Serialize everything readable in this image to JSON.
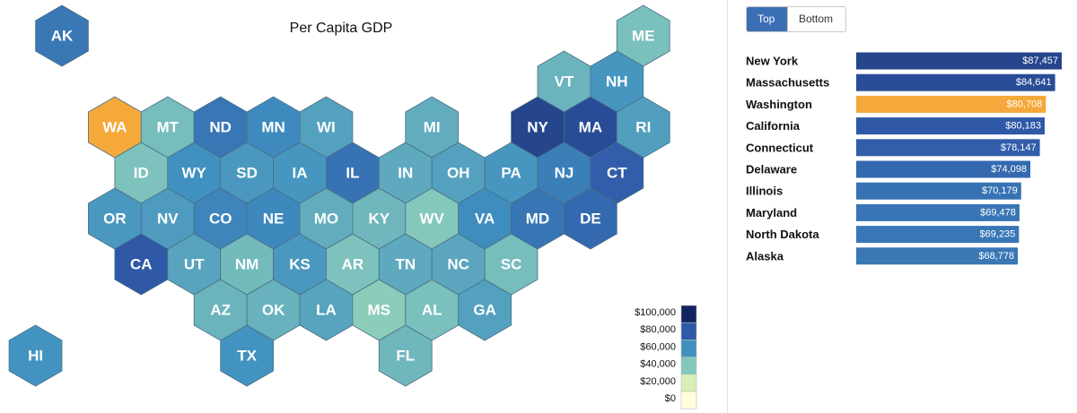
{
  "title": "Per Capita GDP",
  "colors": {
    "highlight": "#f4a93a",
    "scale": [
      "#ffffd9",
      "#d7efb4",
      "#84c8bb",
      "#4090c0",
      "#2f58a8",
      "#142460"
    ]
  },
  "controls": {
    "tabs": [
      {
        "id": "top",
        "label": "Top",
        "active": true
      },
      {
        "id": "bottom",
        "label": "Bottom",
        "active": false
      }
    ]
  },
  "chart_data": [
    {
      "type": "heatmap",
      "title": "Per Capita GDP",
      "highlight_state": "WA",
      "color_stops": [
        0,
        20000,
        40000,
        60000,
        80000,
        100000
      ],
      "legend": {
        "labels": [
          "$100,000",
          "$80,000",
          "$60,000",
          "$40,000",
          "$20,000",
          "$0"
        ],
        "placement": "bottom-right"
      },
      "states": [
        {
          "abbr": "AK",
          "col": 0,
          "row": 0,
          "value": 68778
        },
        {
          "abbr": "ME",
          "col": 11,
          "row": 0,
          "value": 43000
        },
        {
          "abbr": "VT",
          "col": 10,
          "row": 1,
          "value": 47000
        },
        {
          "abbr": "NH",
          "col": 11,
          "row": 1,
          "value": 58000
        },
        {
          "abbr": "WA",
          "col": 1,
          "row": 2,
          "value": 80708
        },
        {
          "abbr": "MT",
          "col": 2,
          "row": 2,
          "value": 44000
        },
        {
          "abbr": "ND",
          "col": 3,
          "row": 2,
          "value": 69235
        },
        {
          "abbr": "MN",
          "col": 4,
          "row": 2,
          "value": 62000
        },
        {
          "abbr": "WI",
          "col": 5,
          "row": 2,
          "value": 54000
        },
        {
          "abbr": "MI",
          "col": 7,
          "row": 2,
          "value": 50000
        },
        {
          "abbr": "NY",
          "col": 9,
          "row": 2,
          "value": 87457
        },
        {
          "abbr": "MA",
          "col": 10,
          "row": 2,
          "value": 84641
        },
        {
          "abbr": "RI",
          "col": 11,
          "row": 2,
          "value": 55000
        },
        {
          "abbr": "ID",
          "col": 2,
          "row": 3,
          "value": 42000
        },
        {
          "abbr": "WY",
          "col": 3,
          "row": 3,
          "value": 60000
        },
        {
          "abbr": "SD",
          "col": 4,
          "row": 3,
          "value": 57000
        },
        {
          "abbr": "IA",
          "col": 5,
          "row": 3,
          "value": 58000
        },
        {
          "abbr": "IL",
          "col": 6,
          "row": 3,
          "value": 70179
        },
        {
          "abbr": "IN",
          "col": 7,
          "row": 3,
          "value": 51000
        },
        {
          "abbr": "OH",
          "col": 8,
          "row": 3,
          "value": 54000
        },
        {
          "abbr": "PA",
          "col": 9,
          "row": 3,
          "value": 58000
        },
        {
          "abbr": "NJ",
          "col": 10,
          "row": 3,
          "value": 66000
        },
        {
          "abbr": "CT",
          "col": 11,
          "row": 3,
          "value": 78147
        },
        {
          "abbr": "OR",
          "col": 1,
          "row": 4,
          "value": 57000
        },
        {
          "abbr": "NV",
          "col": 2,
          "row": 4,
          "value": 56000
        },
        {
          "abbr": "CO",
          "col": 3,
          "row": 4,
          "value": 64000
        },
        {
          "abbr": "NE",
          "col": 4,
          "row": 4,
          "value": 63000
        },
        {
          "abbr": "MO",
          "col": 5,
          "row": 4,
          "value": 50000
        },
        {
          "abbr": "KY",
          "col": 6,
          "row": 4,
          "value": 46000
        },
        {
          "abbr": "WV",
          "col": 7,
          "row": 4,
          "value": 40000
        },
        {
          "abbr": "VA",
          "col": 8,
          "row": 4,
          "value": 61000
        },
        {
          "abbr": "MD",
          "col": 9,
          "row": 4,
          "value": 69478
        },
        {
          "abbr": "DE",
          "col": 10,
          "row": 4,
          "value": 74098
        },
        {
          "abbr": "CA",
          "col": 2,
          "row": 5,
          "value": 80183
        },
        {
          "abbr": "UT",
          "col": 3,
          "row": 5,
          "value": 53000
        },
        {
          "abbr": "NM",
          "col": 4,
          "row": 5,
          "value": 45000
        },
        {
          "abbr": "KS",
          "col": 5,
          "row": 5,
          "value": 57000
        },
        {
          "abbr": "AR",
          "col": 6,
          "row": 5,
          "value": 42000
        },
        {
          "abbr": "TN",
          "col": 7,
          "row": 5,
          "value": 51000
        },
        {
          "abbr": "NC",
          "col": 8,
          "row": 5,
          "value": 52000
        },
        {
          "abbr": "SC",
          "col": 9,
          "row": 5,
          "value": 44000
        },
        {
          "abbr": "AZ",
          "col": 3,
          "row": 6,
          "value": 47000
        },
        {
          "abbr": "OK",
          "col": 4,
          "row": 6,
          "value": 48000
        },
        {
          "abbr": "LA",
          "col": 5,
          "row": 6,
          "value": 53000
        },
        {
          "abbr": "MS",
          "col": 6,
          "row": 6,
          "value": 38000
        },
        {
          "abbr": "AL",
          "col": 7,
          "row": 6,
          "value": 43000
        },
        {
          "abbr": "GA",
          "col": 8,
          "row": 6,
          "value": 54000
        },
        {
          "abbr": "HI",
          "col": 0,
          "row": 7,
          "value": 59000
        },
        {
          "abbr": "TX",
          "col": 4,
          "row": 7,
          "value": 59000
        },
        {
          "abbr": "FL",
          "col": 7,
          "row": 7,
          "value": 46000
        }
      ]
    },
    {
      "type": "bar",
      "orientation": "horizontal",
      "categories": [
        "New York",
        "Massachusetts",
        "Washington",
        "California",
        "Connecticut",
        "Delaware",
        "Illinois",
        "Maryland",
        "North Dakota",
        "Alaska"
      ],
      "values": [
        87457,
        84641,
        80708,
        80183,
        78147,
        74098,
        70179,
        69478,
        69235,
        68778
      ],
      "value_labels": [
        "$87,457",
        "$84,641",
        "$80,708",
        "$80,183",
        "$78,147",
        "$74,098",
        "$70,179",
        "$69,478",
        "$69,235",
        "$68,778"
      ],
      "highlight_category": "Washington",
      "xlim": [
        0,
        87457
      ]
    }
  ]
}
